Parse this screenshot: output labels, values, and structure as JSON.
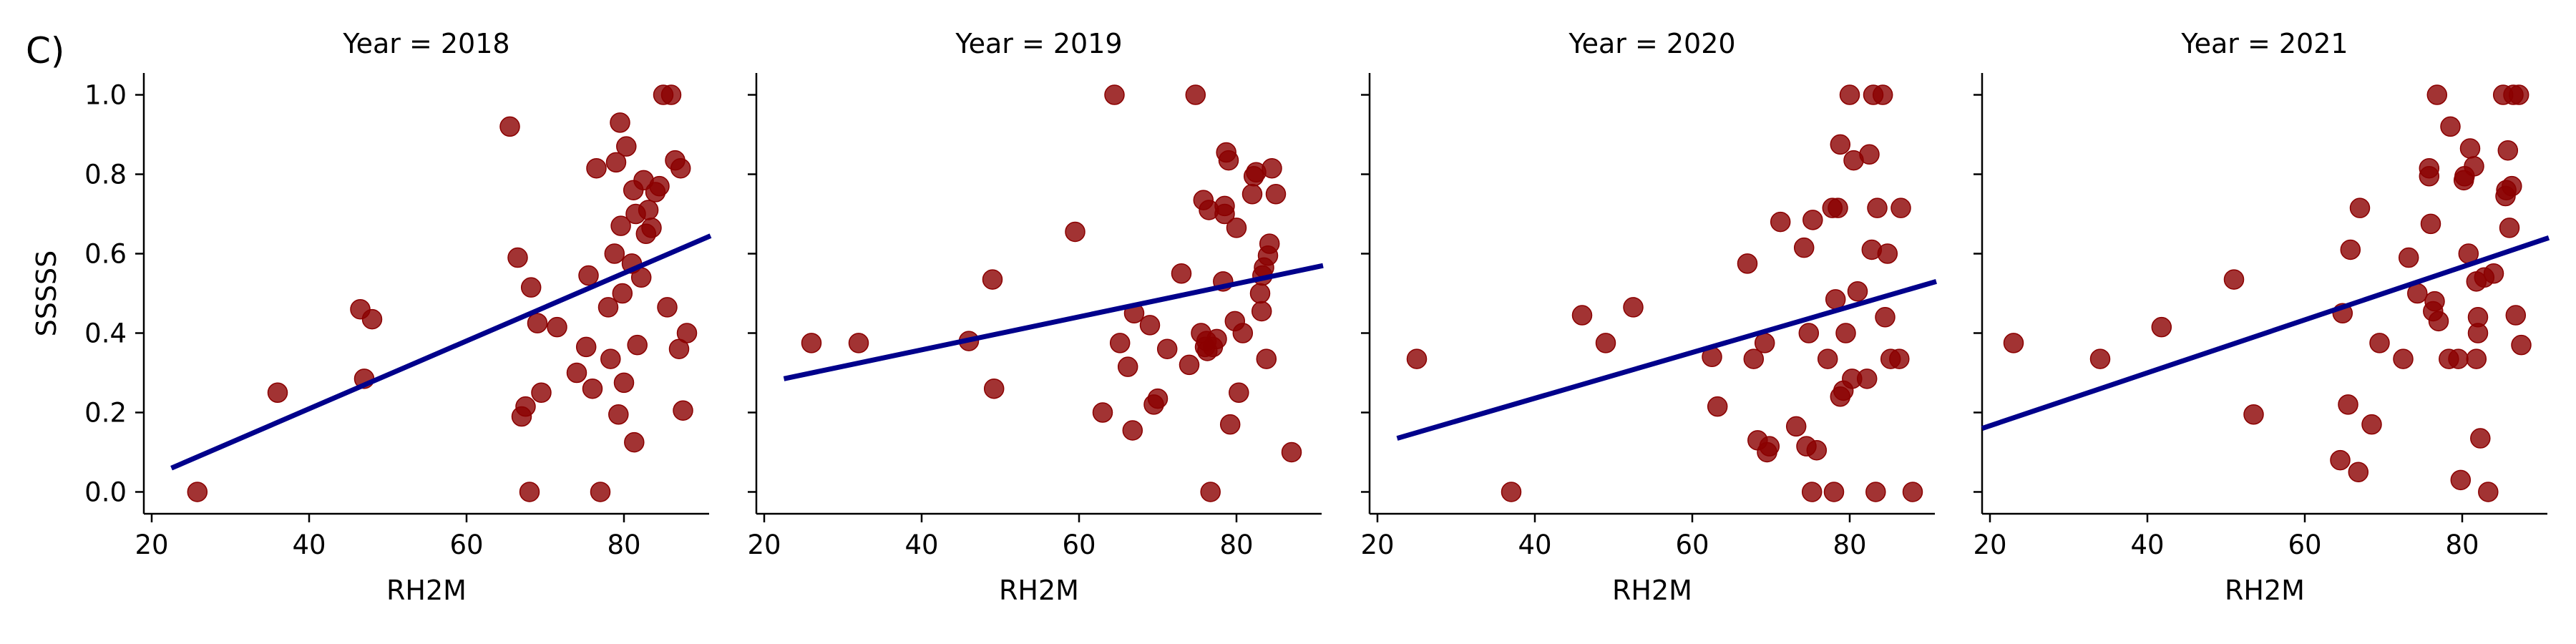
{
  "figure_label": "C)",
  "colors": {
    "points": "#8b0000",
    "fit_line": "#00008b"
  },
  "chart_data": [
    {
      "type": "scatter",
      "title": "Year = 2018",
      "xlabel": "RH2M",
      "ylabel": "SSSSS",
      "xlim": [
        19,
        91
      ],
      "ylim": [
        -0.055,
        1.055
      ],
      "xticks": [
        20,
        40,
        60,
        80
      ],
      "yticks": [
        "0.0",
        "0.2",
        "0.4",
        "0.6",
        "0.8",
        "1.0"
      ],
      "fit": [
        [
          22.5,
          0.06
        ],
        [
          91,
          0.645
        ]
      ],
      "points": [
        [
          25.8,
          0.0
        ],
        [
          36,
          0.25
        ],
        [
          46.5,
          0.46
        ],
        [
          48,
          0.435
        ],
        [
          47,
          0.285
        ],
        [
          65.5,
          0.92
        ],
        [
          66.5,
          0.59
        ],
        [
          67,
          0.19
        ],
        [
          67.5,
          0.215
        ],
        [
          68,
          0.0
        ],
        [
          68.2,
          0.515
        ],
        [
          69,
          0.425
        ],
        [
          69.5,
          0.25
        ],
        [
          71.5,
          0.415
        ],
        [
          74,
          0.3
        ],
        [
          75.2,
          0.365
        ],
        [
          75.5,
          0.545
        ],
        [
          76,
          0.26
        ],
        [
          76.5,
          0.815
        ],
        [
          77,
          0.0
        ],
        [
          78,
          0.465
        ],
        [
          78.3,
          0.335
        ],
        [
          78.8,
          0.6
        ],
        [
          79,
          0.83
        ],
        [
          79.3,
          0.195
        ],
        [
          79.5,
          0.93
        ],
        [
          79.6,
          0.67
        ],
        [
          79.8,
          0.5
        ],
        [
          80,
          0.275
        ],
        [
          80.3,
          0.87
        ],
        [
          81,
          0.575
        ],
        [
          81.2,
          0.76
        ],
        [
          81.3,
          0.125
        ],
        [
          81.5,
          0.7
        ],
        [
          81.7,
          0.37
        ],
        [
          82.2,
          0.54
        ],
        [
          82.5,
          0.785
        ],
        [
          82.8,
          0.65
        ],
        [
          83.1,
          0.71
        ],
        [
          83.5,
          0.665
        ],
        [
          84,
          0.755
        ],
        [
          84.5,
          0.77
        ],
        [
          85,
          1.0
        ],
        [
          85.5,
          0.465
        ],
        [
          86,
          1.0
        ],
        [
          86.5,
          0.835
        ],
        [
          87,
          0.36
        ],
        [
          87.2,
          0.815
        ],
        [
          87.5,
          0.205
        ],
        [
          88,
          0.4
        ]
      ]
    },
    {
      "type": "scatter",
      "title": "Year = 2019",
      "xlabel": "RH2M",
      "ylabel": "",
      "xlim": [
        19,
        91
      ],
      "ylim": [
        -0.055,
        1.055
      ],
      "xticks": [
        20,
        40,
        60,
        80
      ],
      "yticks": [
        "0.0",
        "0.2",
        "0.4",
        "0.6",
        "0.8",
        "1.0"
      ],
      "fit": [
        [
          22.5,
          0.285
        ],
        [
          91,
          0.57
        ]
      ],
      "points": [
        [
          26,
          0.375
        ],
        [
          32,
          0.375
        ],
        [
          46,
          0.38
        ],
        [
          49,
          0.535
        ],
        [
          49.2,
          0.26
        ],
        [
          59.5,
          0.655
        ],
        [
          63,
          0.2
        ],
        [
          64.5,
          1.0
        ],
        [
          65.2,
          0.375
        ],
        [
          66.2,
          0.315
        ],
        [
          66.8,
          0.155
        ],
        [
          67,
          0.45
        ],
        [
          69,
          0.42
        ],
        [
          69.5,
          0.22
        ],
        [
          70,
          0.235
        ],
        [
          71.2,
          0.36
        ],
        [
          73,
          0.55
        ],
        [
          74,
          0.32
        ],
        [
          74.8,
          1.0
        ],
        [
          75.5,
          0.4
        ],
        [
          75.8,
          0.735
        ],
        [
          76,
          0.365
        ],
        [
          76.2,
          0.38
        ],
        [
          76.3,
          0.355
        ],
        [
          76.5,
          0.71
        ],
        [
          76.7,
          0.0
        ],
        [
          77,
          0.365
        ],
        [
          77.5,
          0.385
        ],
        [
          78.3,
          0.53
        ],
        [
          78.5,
          0.7
        ],
        [
          78.5,
          0.72
        ],
        [
          78.7,
          0.855
        ],
        [
          79,
          0.835
        ],
        [
          79.2,
          0.17
        ],
        [
          79.8,
          0.43
        ],
        [
          80,
          0.665
        ],
        [
          80.3,
          0.25
        ],
        [
          80.8,
          0.4
        ],
        [
          82,
          0.75
        ],
        [
          82.2,
          0.795
        ],
        [
          82.5,
          0.805
        ],
        [
          83,
          0.5
        ],
        [
          83.2,
          0.455
        ],
        [
          83.3,
          0.545
        ],
        [
          83.5,
          0.565
        ],
        [
          83.8,
          0.335
        ],
        [
          84,
          0.595
        ],
        [
          84.2,
          0.625
        ],
        [
          84.5,
          0.815
        ],
        [
          85,
          0.75
        ],
        [
          87,
          0.1
        ]
      ]
    },
    {
      "type": "scatter",
      "title": "Year = 2020",
      "xlabel": "RH2M",
      "ylabel": "",
      "xlim": [
        19,
        91
      ],
      "ylim": [
        -0.055,
        1.055
      ],
      "xticks": [
        20,
        40,
        60,
        80
      ],
      "yticks": [
        "0.0",
        "0.2",
        "0.4",
        "0.6",
        "0.8",
        "1.0"
      ],
      "fit": [
        [
          22.5,
          0.135
        ],
        [
          91,
          0.53
        ]
      ],
      "points": [
        [
          25,
          0.335
        ],
        [
          37,
          0.0
        ],
        [
          46,
          0.445
        ],
        [
          49,
          0.375
        ],
        [
          52.5,
          0.465
        ],
        [
          62.5,
          0.34
        ],
        [
          63.2,
          0.215
        ],
        [
          67,
          0.575
        ],
        [
          67.8,
          0.335
        ],
        [
          68.3,
          0.13
        ],
        [
          69.2,
          0.375
        ],
        [
          69.5,
          0.1
        ],
        [
          69.8,
          0.115
        ],
        [
          71.2,
          0.68
        ],
        [
          73.2,
          0.165
        ],
        [
          74.2,
          0.615
        ],
        [
          74.5,
          0.115
        ],
        [
          74.8,
          0.4
        ],
        [
          75.2,
          0.0
        ],
        [
          75.3,
          0.685
        ],
        [
          75.8,
          0.105
        ],
        [
          77.2,
          0.335
        ],
        [
          77.8,
          0.715
        ],
        [
          78,
          0.0
        ],
        [
          78.2,
          0.485
        ],
        [
          78.5,
          0.715
        ],
        [
          78.8,
          0.875
        ],
        [
          78.8,
          0.24
        ],
        [
          79.2,
          0.255
        ],
        [
          79.5,
          0.4
        ],
        [
          80,
          1.0
        ],
        [
          80.3,
          0.285
        ],
        [
          80.5,
          0.835
        ],
        [
          81,
          0.505
        ],
        [
          82.2,
          0.285
        ],
        [
          82.5,
          0.85
        ],
        [
          82.8,
          0.61
        ],
        [
          83,
          1.0
        ],
        [
          83.3,
          0.0
        ],
        [
          83.5,
          0.715
        ],
        [
          84.2,
          1.0
        ],
        [
          84.5,
          0.44
        ],
        [
          84.8,
          0.6
        ],
        [
          85.2,
          0.335
        ],
        [
          86.3,
          0.335
        ],
        [
          86.5,
          0.715
        ],
        [
          88,
          0.0
        ]
      ]
    },
    {
      "type": "scatter",
      "title": "Year = 2021",
      "xlabel": "RH2M",
      "ylabel": "",
      "xlim": [
        19,
        91
      ],
      "ylim": [
        -0.055,
        1.055
      ],
      "xticks": [
        20,
        40,
        60,
        80
      ],
      "yticks": [
        "0.0",
        "0.2",
        "0.4",
        "0.6",
        "0.8",
        "1.0"
      ],
      "fit": [
        [
          19,
          0.16
        ],
        [
          91,
          0.64
        ]
      ],
      "points": [
        [
          23,
          0.375
        ],
        [
          34,
          0.335
        ],
        [
          41.8,
          0.415
        ],
        [
          51,
          0.535
        ],
        [
          53.5,
          0.195
        ],
        [
          64.5,
          0.08
        ],
        [
          64.8,
          0.45
        ],
        [
          65.5,
          0.22
        ],
        [
          65.8,
          0.61
        ],
        [
          66.8,
          0.05
        ],
        [
          67,
          0.715
        ],
        [
          68.5,
          0.17
        ],
        [
          69.5,
          0.375
        ],
        [
          72.5,
          0.335
        ],
        [
          73.2,
          0.59
        ],
        [
          74.3,
          0.5
        ],
        [
          75.8,
          0.815
        ],
        [
          75.8,
          0.795
        ],
        [
          76,
          0.675
        ],
        [
          76.3,
          0.455
        ],
        [
          76.5,
          0.48
        ],
        [
          76.8,
          1.0
        ],
        [
          77,
          0.43
        ],
        [
          78.3,
          0.335
        ],
        [
          78.5,
          0.92
        ],
        [
          79.5,
          0.335
        ],
        [
          79.8,
          0.03
        ],
        [
          80.2,
          0.785
        ],
        [
          80.3,
          0.795
        ],
        [
          80.8,
          0.6
        ],
        [
          81,
          0.865
        ],
        [
          81.5,
          0.82
        ],
        [
          81.8,
          0.335
        ],
        [
          81.8,
          0.53
        ],
        [
          82,
          0.44
        ],
        [
          82,
          0.4
        ],
        [
          82.3,
          0.135
        ],
        [
          82.8,
          0.54
        ],
        [
          83.3,
          0.0
        ],
        [
          84,
          0.55
        ],
        [
          85.2,
          1.0
        ],
        [
          85.5,
          0.745
        ],
        [
          85.6,
          0.76
        ],
        [
          85.8,
          0.86
        ],
        [
          86,
          0.665
        ],
        [
          86.3,
          0.77
        ],
        [
          86.5,
          1.0
        ],
        [
          86.8,
          0.445
        ],
        [
          87.2,
          1.0
        ],
        [
          87.5,
          0.37
        ]
      ]
    }
  ]
}
